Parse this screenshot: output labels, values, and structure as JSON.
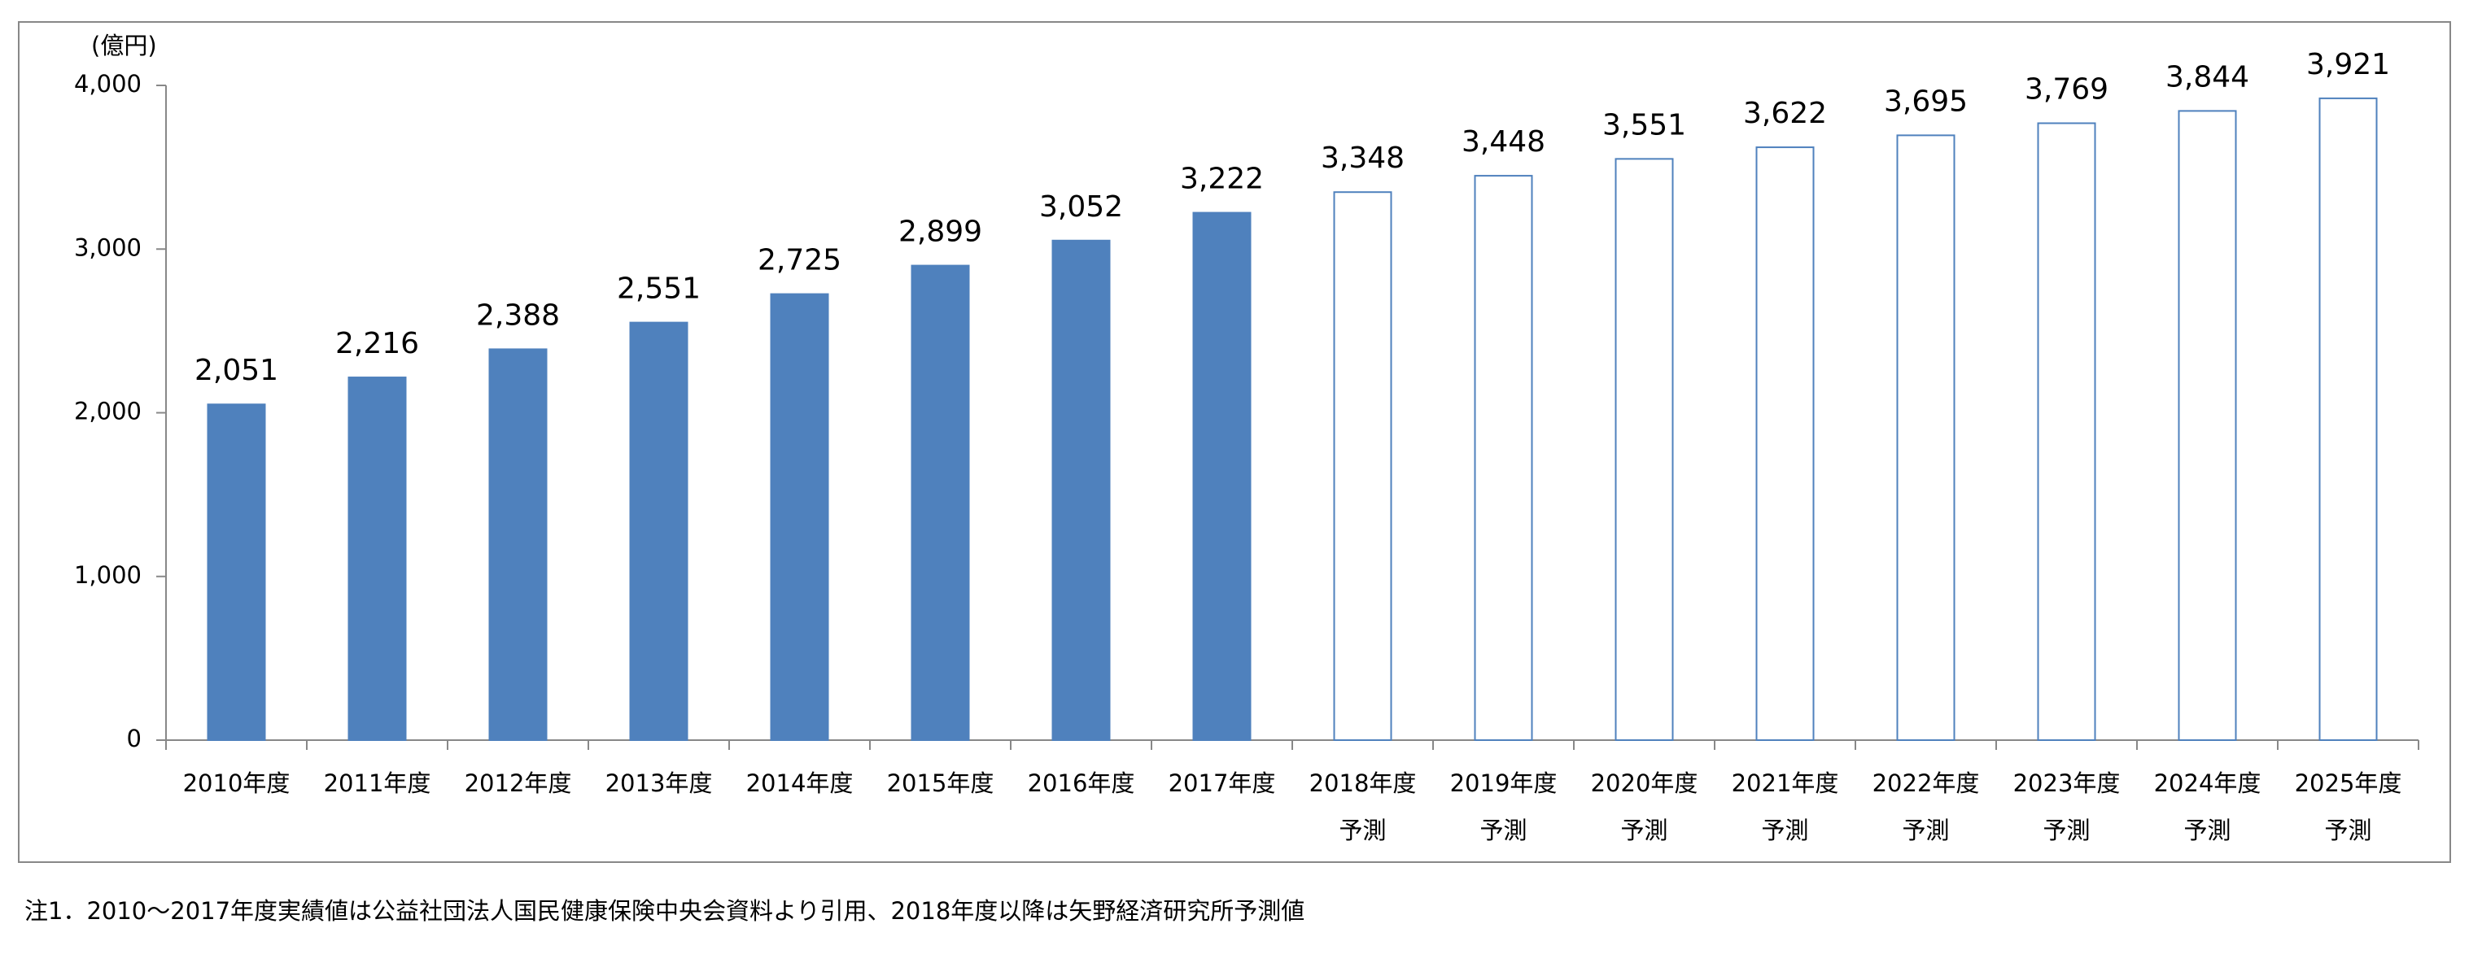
{
  "chart_data": {
    "type": "bar",
    "y_label": "(億円)",
    "categories": [
      [
        "2010年度"
      ],
      [
        "2011年度"
      ],
      [
        "2012年度"
      ],
      [
        "2013年度"
      ],
      [
        "2014年度"
      ],
      [
        "2015年度"
      ],
      [
        "2016年度"
      ],
      [
        "2017年度"
      ],
      [
        "2018年度",
        "予測"
      ],
      [
        "2019年度",
        "予測"
      ],
      [
        "2020年度",
        "予測"
      ],
      [
        "2021年度",
        "予測"
      ],
      [
        "2022年度",
        "予測"
      ],
      [
        "2023年度",
        "予測"
      ],
      [
        "2024年度",
        "予測"
      ],
      [
        "2025年度",
        "予測"
      ]
    ],
    "series": [
      {
        "color": "#4f81bd",
        "fill": "#4f81bd",
        "values": [
          2051,
          2216,
          2388,
          2551,
          2725,
          2899,
          3052,
          3222,
          null,
          null,
          null,
          null,
          null,
          null,
          null,
          null
        ],
        "value_labels": [
          "2,051",
          "2,216",
          "2,388",
          "2,551",
          "2,725",
          "2,899",
          "3,052",
          "3,222",
          null,
          null,
          null,
          null,
          null,
          null,
          null,
          null
        ]
      },
      {
        "color": "#4f81bd",
        "fill": "#ffffff",
        "values": [
          null,
          null,
          null,
          null,
          null,
          null,
          null,
          null,
          3348,
          3448,
          3551,
          3622,
          3695,
          3769,
          3844,
          3921
        ],
        "value_labels": [
          null,
          null,
          null,
          null,
          null,
          null,
          null,
          null,
          "3,348",
          "3,448",
          "3,551",
          "3,622",
          "3,695",
          "3,769",
          "3,844",
          "3,921"
        ]
      }
    ],
    "ylim": [
      0,
      4000
    ],
    "yticks": [
      0,
      {
        "value": 1000,
        "label": "1,000"
      },
      {
        "value": 2000,
        "label": "2,000"
      },
      {
        "value": 3000,
        "label": "3,000"
      },
      {
        "value": 4000,
        "label": "4,000"
      }
    ],
    "grid": false,
    "note": "注1．2010～2017年度実績値は公益社団法人国民健康保険中央会資料より引用、2018年度以降は矢野経済研究所予測値"
  }
}
